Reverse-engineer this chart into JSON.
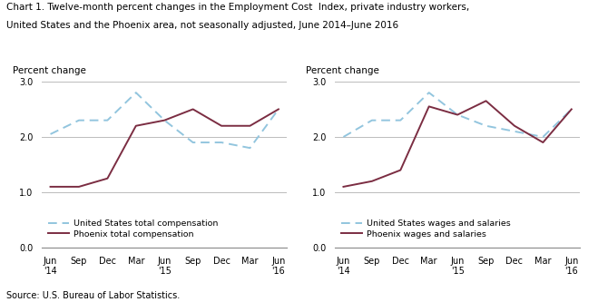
{
  "title_line1": "Chart 1. Twelve-month percent changes in the Employment Cost  Index, private industry workers,",
  "title_line2": "United States and the Phoenix area, not seasonally adjusted, June 2014–June 2016",
  "source": "Source: U.S. Bureau of Labor Statistics.",
  "x_labels": [
    "Jun\n'14",
    "Sep",
    "Dec",
    "Mar",
    "Jun\n'15",
    "Sep",
    "Dec",
    "Mar",
    "Jun\n'16"
  ],
  "x_ticks": [
    0,
    1,
    2,
    3,
    4,
    5,
    6,
    7,
    8
  ],
  "chart1": {
    "us_total_comp": [
      2.05,
      2.3,
      2.3,
      2.8,
      2.3,
      1.9,
      1.9,
      1.8,
      2.5
    ],
    "phoenix_total_comp": [
      1.1,
      1.1,
      1.25,
      2.2,
      2.3,
      2.5,
      2.2,
      2.2,
      2.5
    ],
    "us_label": "United States total compensation",
    "phoenix_label": "Phoenix total compensation"
  },
  "chart2": {
    "us_wages": [
      2.0,
      2.3,
      2.3,
      2.8,
      2.4,
      2.2,
      2.1,
      2.0,
      2.5
    ],
    "phoenix_wages": [
      1.1,
      1.2,
      1.4,
      2.55,
      2.4,
      2.65,
      2.2,
      1.9,
      2.5
    ],
    "us_label": "United States wages and salaries",
    "phoenix_label": "Phoenix wages and salaries"
  },
  "ylim": [
    0.0,
    3.0
  ],
  "yticks": [
    0.0,
    1.0,
    2.0,
    3.0
  ],
  "ylabel": "Percent change",
  "us_color": "#92C5DE",
  "phoenix_color": "#7B2D42",
  "background_color": "#ffffff",
  "grid_color": "#bbbbbb",
  "title_fontsize": 7.5,
  "tick_fontsize": 7,
  "legend_fontsize": 6.8,
  "ylabel_fontsize": 7.5
}
